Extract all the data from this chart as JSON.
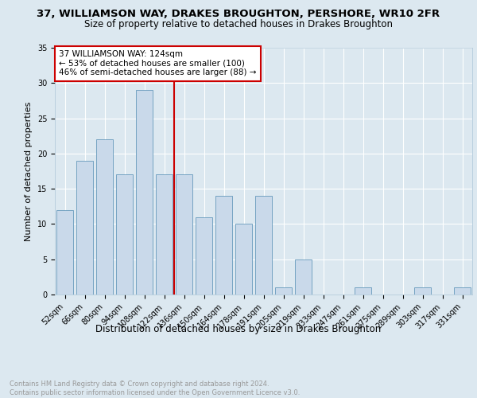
{
  "title": "37, WILLIAMSON WAY, DRAKES BROUGHTON, PERSHORE, WR10 2FR",
  "subtitle": "Size of property relative to detached houses in Drakes Broughton",
  "xlabel": "Distribution of detached houses by size in Drakes Broughton",
  "ylabel": "Number of detached properties",
  "footnote": "Contains HM Land Registry data © Crown copyright and database right 2024.\nContains public sector information licensed under the Open Government Licence v3.0.",
  "categories": [
    "52sqm",
    "66sqm",
    "80sqm",
    "94sqm",
    "108sqm",
    "122sqm",
    "136sqm",
    "150sqm",
    "164sqm",
    "178sqm",
    "191sqm",
    "205sqm",
    "219sqm",
    "233sqm",
    "247sqm",
    "261sqm",
    "275sqm",
    "289sqm",
    "303sqm",
    "317sqm",
    "331sqm"
  ],
  "values": [
    12,
    19,
    22,
    17,
    29,
    17,
    17,
    11,
    14,
    10,
    14,
    1,
    5,
    0,
    0,
    1,
    0,
    0,
    1,
    0,
    1
  ],
  "bar_color": "#c9d9ea",
  "bar_edge_color": "#6699bb",
  "vline_x": 5.5,
  "vline_color": "#cc0000",
  "annotation_text": "37 WILLIAMSON WAY: 124sqm\n← 53% of detached houses are smaller (100)\n46% of semi-detached houses are larger (88) →",
  "annotation_box_facecolor": "#ffffff",
  "annotation_box_edge": "#cc0000",
  "ylim": [
    0,
    35
  ],
  "yticks": [
    0,
    5,
    10,
    15,
    20,
    25,
    30,
    35
  ],
  "fig_bg_color": "#dce8f0",
  "plot_bg_color": "#dce8f0",
  "grid_color": "#ffffff",
  "title_fontsize": 9.5,
  "subtitle_fontsize": 8.5,
  "xlabel_fontsize": 8.5,
  "ylabel_fontsize": 8,
  "tick_fontsize": 7,
  "annotation_fontsize": 7.5,
  "footnote_fontsize": 6,
  "footnote_color": "#999999"
}
